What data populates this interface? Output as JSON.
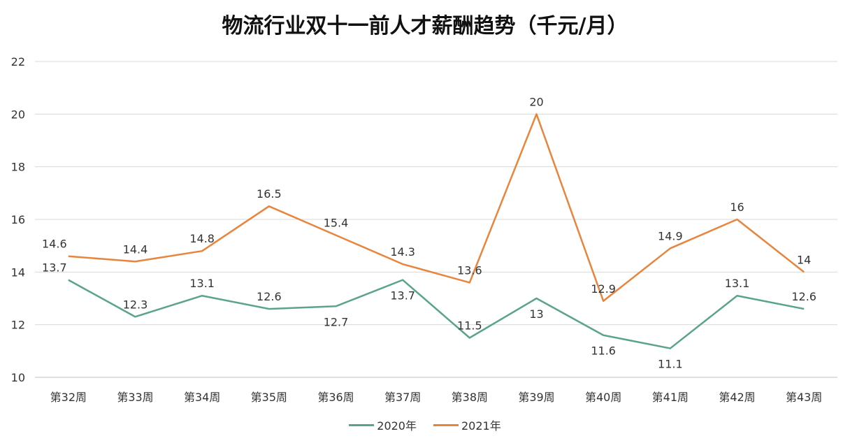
{
  "chart_data": {
    "type": "line",
    "title": "物流行业双十一前人才薪酬趋势（千元/月）",
    "xlabel": "",
    "ylabel": "",
    "categories": [
      "第32周",
      "第33周",
      "第34周",
      "第35周",
      "第36周",
      "第37周",
      "第38周",
      "第39周",
      "第40周",
      "第41周",
      "第42周",
      "第43周"
    ],
    "ylim": [
      10,
      22
    ],
    "yticks": [
      10,
      12,
      14,
      16,
      18,
      20,
      22
    ],
    "grid": true,
    "legend": "bottom",
    "series": [
      {
        "name": "2020年",
        "color": "#5aa487",
        "values": [
          13.7,
          12.3,
          13.1,
          12.6,
          12.7,
          13.7,
          11.5,
          13,
          11.6,
          11.1,
          13.1,
          12.6
        ],
        "label_pos": [
          "above",
          "above",
          "above",
          "above",
          "below",
          "below",
          "above",
          "below",
          "below",
          "below",
          "above",
          "above"
        ]
      },
      {
        "name": "2021年",
        "color": "#e8853d",
        "values": [
          14.6,
          14.4,
          14.8,
          16.5,
          15.4,
          14.3,
          13.6,
          20,
          12.9,
          14.9,
          16,
          14
        ],
        "label_pos": [
          "above",
          "above",
          "above",
          "above",
          "above",
          "above",
          "above",
          "above",
          "above",
          "above",
          "above",
          "above"
        ]
      }
    ]
  }
}
